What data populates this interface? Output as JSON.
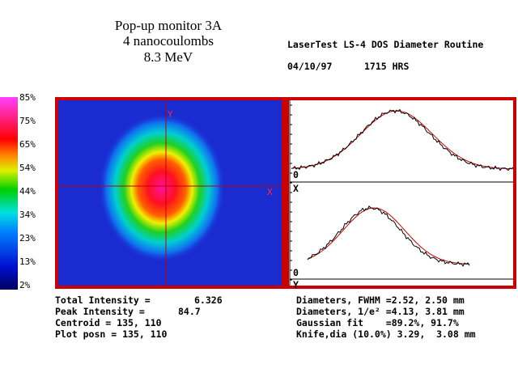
{
  "header": {
    "title_lines": [
      "Pop-up monitor 3A",
      "4 nanocoulombs",
      "8.3 MeV"
    ],
    "program": "LaserTest LS-4 DOS Diameter Routine",
    "date": "04/10/97",
    "time": "1715 HRS"
  },
  "colorbar_labels": [
    "85%",
    "75%",
    "65%",
    "54%",
    "44%",
    "34%",
    "23%",
    "13%",
    "2%"
  ],
  "image_panel": {
    "y_label": "Y",
    "x_label": "X"
  },
  "profile_panel": {
    "x_profile": {
      "zero_label": "0",
      "axis_label": "X"
    },
    "y_profile": {
      "zero_label": "0",
      "axis_label": "Y"
    }
  },
  "stats_left": [
    {
      "label": "Total Intensity =",
      "value": "6.326"
    },
    {
      "label": "Peak Intensity =",
      "value": "84.7"
    },
    {
      "label": "Centroid = 135, 110"
    },
    {
      "label": "Plot posn = 135, 110"
    }
  ],
  "stats_right": [
    "Diameters, FWHM =2.52, 2.50 mm",
    "Diameters, 1/e² =4.13, 3.81 mm",
    "Gaussian fit    =89.2%, 91.7%",
    "Knife,dia (10.0%) 3.29,  3.08 mm"
  ]
}
